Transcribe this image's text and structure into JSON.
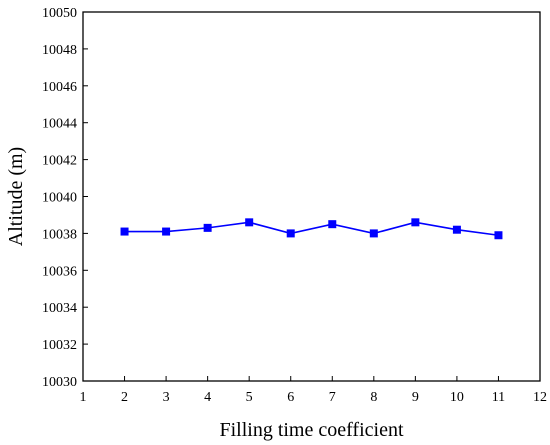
{
  "chart_data": {
    "type": "line",
    "xlabel": "Filling time coefficient",
    "ylabel": "Altitude (m)",
    "xlim": [
      1,
      12
    ],
    "ylim": [
      10030,
      10050
    ],
    "xticks": [
      1,
      2,
      3,
      4,
      5,
      6,
      7,
      8,
      9,
      10,
      11,
      12
    ],
    "yticks": [
      10030,
      10032,
      10034,
      10036,
      10038,
      10040,
      10042,
      10044,
      10046,
      10048,
      10050
    ],
    "grid": false,
    "legend": "none",
    "series": [
      {
        "color": "#0000ff",
        "marker": "square",
        "x": [
          2,
          3,
          4,
          5,
          6,
          7,
          8,
          9,
          10,
          11
        ],
        "y": [
          10038.1,
          10038.1,
          10038.3,
          10038.6,
          10038.0,
          10038.5,
          10038.0,
          10038.6,
          10038.2,
          10037.9
        ]
      }
    ]
  }
}
